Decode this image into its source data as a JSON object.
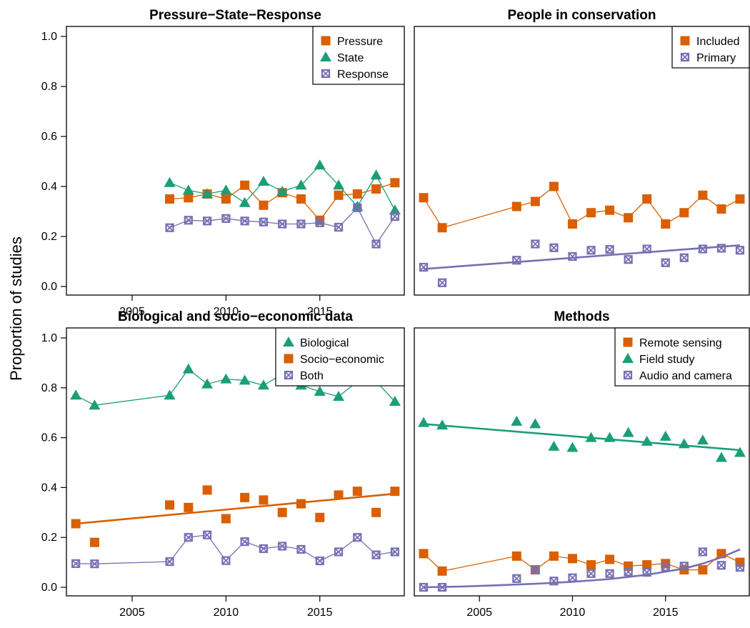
{
  "ylabel": "Proportion of studies",
  "chart_data": [
    {
      "type": "scatter",
      "title": "Pressure−State−Response",
      "xlim": [
        2001.5,
        2019.5
      ],
      "ylim": [
        0,
        1.0
      ],
      "x_ticks": [
        "2005",
        "2010",
        "2015"
      ],
      "y_ticks": [
        "0.0",
        "0.2",
        "0.4",
        "0.6",
        "0.8",
        "1.0"
      ],
      "legend": "top-right",
      "series": [
        {
          "name": "Pressure",
          "marker": "square",
          "color": "#d95f02",
          "connect": true,
          "x": [
            2007,
            2008,
            2009,
            2010,
            2011,
            2012,
            2013,
            2014,
            2015,
            2016,
            2017,
            2018,
            2019
          ],
          "y": [
            0.35,
            0.355,
            0.37,
            0.35,
            0.405,
            0.325,
            0.375,
            0.35,
            0.265,
            0.365,
            0.37,
            0.39,
            0.415
          ]
        },
        {
          "name": "State",
          "marker": "triangle",
          "color": "#1b9e77",
          "connect": true,
          "x": [
            2007,
            2008,
            2009,
            2010,
            2011,
            2012,
            2013,
            2014,
            2015,
            2016,
            2017,
            2018,
            2019
          ],
          "y": [
            0.415,
            0.385,
            0.37,
            0.385,
            0.335,
            0.42,
            0.38,
            0.405,
            0.485,
            0.405,
            0.32,
            0.445,
            0.305
          ]
        },
        {
          "name": "Response",
          "marker": "boxx",
          "color": "#7570b3",
          "connect": true,
          "x": [
            2007,
            2008,
            2009,
            2010,
            2011,
            2012,
            2013,
            2014,
            2015,
            2016,
            2017,
            2018,
            2019
          ],
          "y": [
            0.235,
            0.265,
            0.262,
            0.272,
            0.262,
            0.258,
            0.25,
            0.25,
            0.255,
            0.237,
            0.315,
            0.17,
            0.28
          ]
        }
      ]
    },
    {
      "type": "scatter",
      "title": "People in conservation",
      "xlim": [
        2001.5,
        2019.5
      ],
      "ylim": [
        0,
        1.0
      ],
      "x_ticks": [],
      "y_ticks": [],
      "legend": "top-right",
      "series": [
        {
          "name": "Included",
          "marker": "square",
          "color": "#d95f02",
          "connect": true,
          "x": [
            2002,
            2003,
            2007,
            2008,
            2009,
            2010,
            2011,
            2012,
            2013,
            2014,
            2015,
            2016,
            2017,
            2018,
            2019
          ],
          "y": [
            0.355,
            0.235,
            0.32,
            0.34,
            0.4,
            0.25,
            0.295,
            0.305,
            0.275,
            0.35,
            0.25,
            0.295,
            0.365,
            0.31,
            0.35
          ]
        },
        {
          "name": "Primary",
          "marker": "boxx",
          "color": "#7570b3",
          "connect": false,
          "x": [
            2002,
            2003,
            2007,
            2008,
            2009,
            2010,
            2011,
            2012,
            2013,
            2014,
            2015,
            2016,
            2017,
            2018,
            2019
          ],
          "y": [
            0.077,
            0.015,
            0.105,
            0.17,
            0.155,
            0.12,
            0.145,
            0.148,
            0.108,
            0.15,
            0.095,
            0.115,
            0.15,
            0.153,
            0.145
          ],
          "trend": [
            [
              2002,
              0.07
            ],
            [
              2019,
              0.165
            ]
          ]
        }
      ]
    },
    {
      "type": "scatter",
      "title": "Biological and socio−economic data",
      "xlim": [
        2001.5,
        2019.5
      ],
      "ylim": [
        0,
        1.0
      ],
      "x_ticks": [
        "2005",
        "2010",
        "2015"
      ],
      "y_ticks": [
        "0.0",
        "0.2",
        "0.4",
        "0.6",
        "0.8",
        "1.0"
      ],
      "legend": "top-right",
      "series": [
        {
          "name": "Biological",
          "marker": "triangle",
          "color": "#1b9e77",
          "connect": true,
          "x": [
            2002,
            2003,
            2007,
            2008,
            2009,
            2010,
            2011,
            2012,
            2013,
            2014,
            2015,
            2016,
            2017,
            2018,
            2019
          ],
          "y": [
            0.77,
            0.73,
            0.77,
            0.875,
            0.815,
            0.835,
            0.83,
            0.81,
            0.855,
            0.81,
            0.785,
            0.765,
            0.825,
            0.825,
            0.745
          ]
        },
        {
          "name": "Socio−economic",
          "marker": "square",
          "color": "#d95f02",
          "connect": false,
          "x": [
            2002,
            2003,
            2007,
            2008,
            2009,
            2010,
            2011,
            2012,
            2013,
            2014,
            2015,
            2016,
            2017,
            2018,
            2019
          ],
          "y": [
            0.255,
            0.18,
            0.33,
            0.32,
            0.39,
            0.275,
            0.36,
            0.35,
            0.3,
            0.335,
            0.28,
            0.37,
            0.385,
            0.3,
            0.385
          ],
          "trend": [
            [
              2002,
              0.255
            ],
            [
              2019,
              0.375
            ]
          ]
        },
        {
          "name": "Both",
          "marker": "boxx",
          "color": "#7570b3",
          "connect": true,
          "x": [
            2002,
            2003,
            2007,
            2008,
            2009,
            2010,
            2011,
            2012,
            2013,
            2014,
            2015,
            2016,
            2017,
            2018,
            2019
          ],
          "y": [
            0.095,
            0.094,
            0.103,
            0.2,
            0.21,
            0.107,
            0.183,
            0.155,
            0.165,
            0.152,
            0.106,
            0.142,
            0.2,
            0.13,
            0.142
          ]
        }
      ]
    },
    {
      "type": "scatter",
      "title": "Methods",
      "xlim": [
        2001.5,
        2019.5
      ],
      "ylim": [
        0,
        1.0
      ],
      "x_ticks": [
        "2005",
        "2010",
        "2015"
      ],
      "y_ticks": [],
      "legend": "top-right",
      "series": [
        {
          "name": "Remote sensing",
          "marker": "square",
          "color": "#d95f02",
          "connect": true,
          "x": [
            2002,
            2003,
            2007,
            2008,
            2009,
            2010,
            2011,
            2012,
            2013,
            2014,
            2015,
            2016,
            2017,
            2018,
            2019
          ],
          "y": [
            0.135,
            0.065,
            0.125,
            0.07,
            0.125,
            0.115,
            0.09,
            0.112,
            0.085,
            0.09,
            0.095,
            0.07,
            0.07,
            0.135,
            0.1
          ]
        },
        {
          "name": "Field study",
          "marker": "triangle",
          "color": "#1b9e77",
          "connect": false,
          "x": [
            2002,
            2003,
            2007,
            2008,
            2009,
            2010,
            2011,
            2012,
            2013,
            2014,
            2015,
            2016,
            2017,
            2018,
            2019
          ],
          "y": [
            0.66,
            0.65,
            0.665,
            0.655,
            0.565,
            0.56,
            0.6,
            0.6,
            0.62,
            0.585,
            0.605,
            0.575,
            0.59,
            0.52,
            0.54
          ],
          "trend": [
            [
              2002,
              0.655
            ],
            [
              2019,
              0.55
            ]
          ]
        },
        {
          "name": "Audio and camera",
          "marker": "boxx",
          "color": "#7570b3",
          "connect": false,
          "x": [
            2002,
            2003,
            2007,
            2008,
            2009,
            2010,
            2011,
            2012,
            2013,
            2014,
            2015,
            2016,
            2017,
            2018,
            2019
          ],
          "y": [
            0.0,
            0.0,
            0.035,
            0.07,
            0.025,
            0.038,
            0.055,
            0.055,
            0.062,
            0.06,
            0.082,
            0.085,
            0.142,
            0.088,
            0.08
          ],
          "trend": [
            [
              2002,
              0.0
            ],
            [
              2004,
              0.003
            ],
            [
              2006,
              0.008
            ],
            [
              2008,
              0.014
            ],
            [
              2010,
              0.022
            ],
            [
              2012,
              0.033
            ],
            [
              2014,
              0.05
            ],
            [
              2016,
              0.075
            ],
            [
              2017,
              0.095
            ],
            [
              2018,
              0.12
            ],
            [
              2019,
              0.152
            ]
          ]
        }
      ]
    }
  ]
}
